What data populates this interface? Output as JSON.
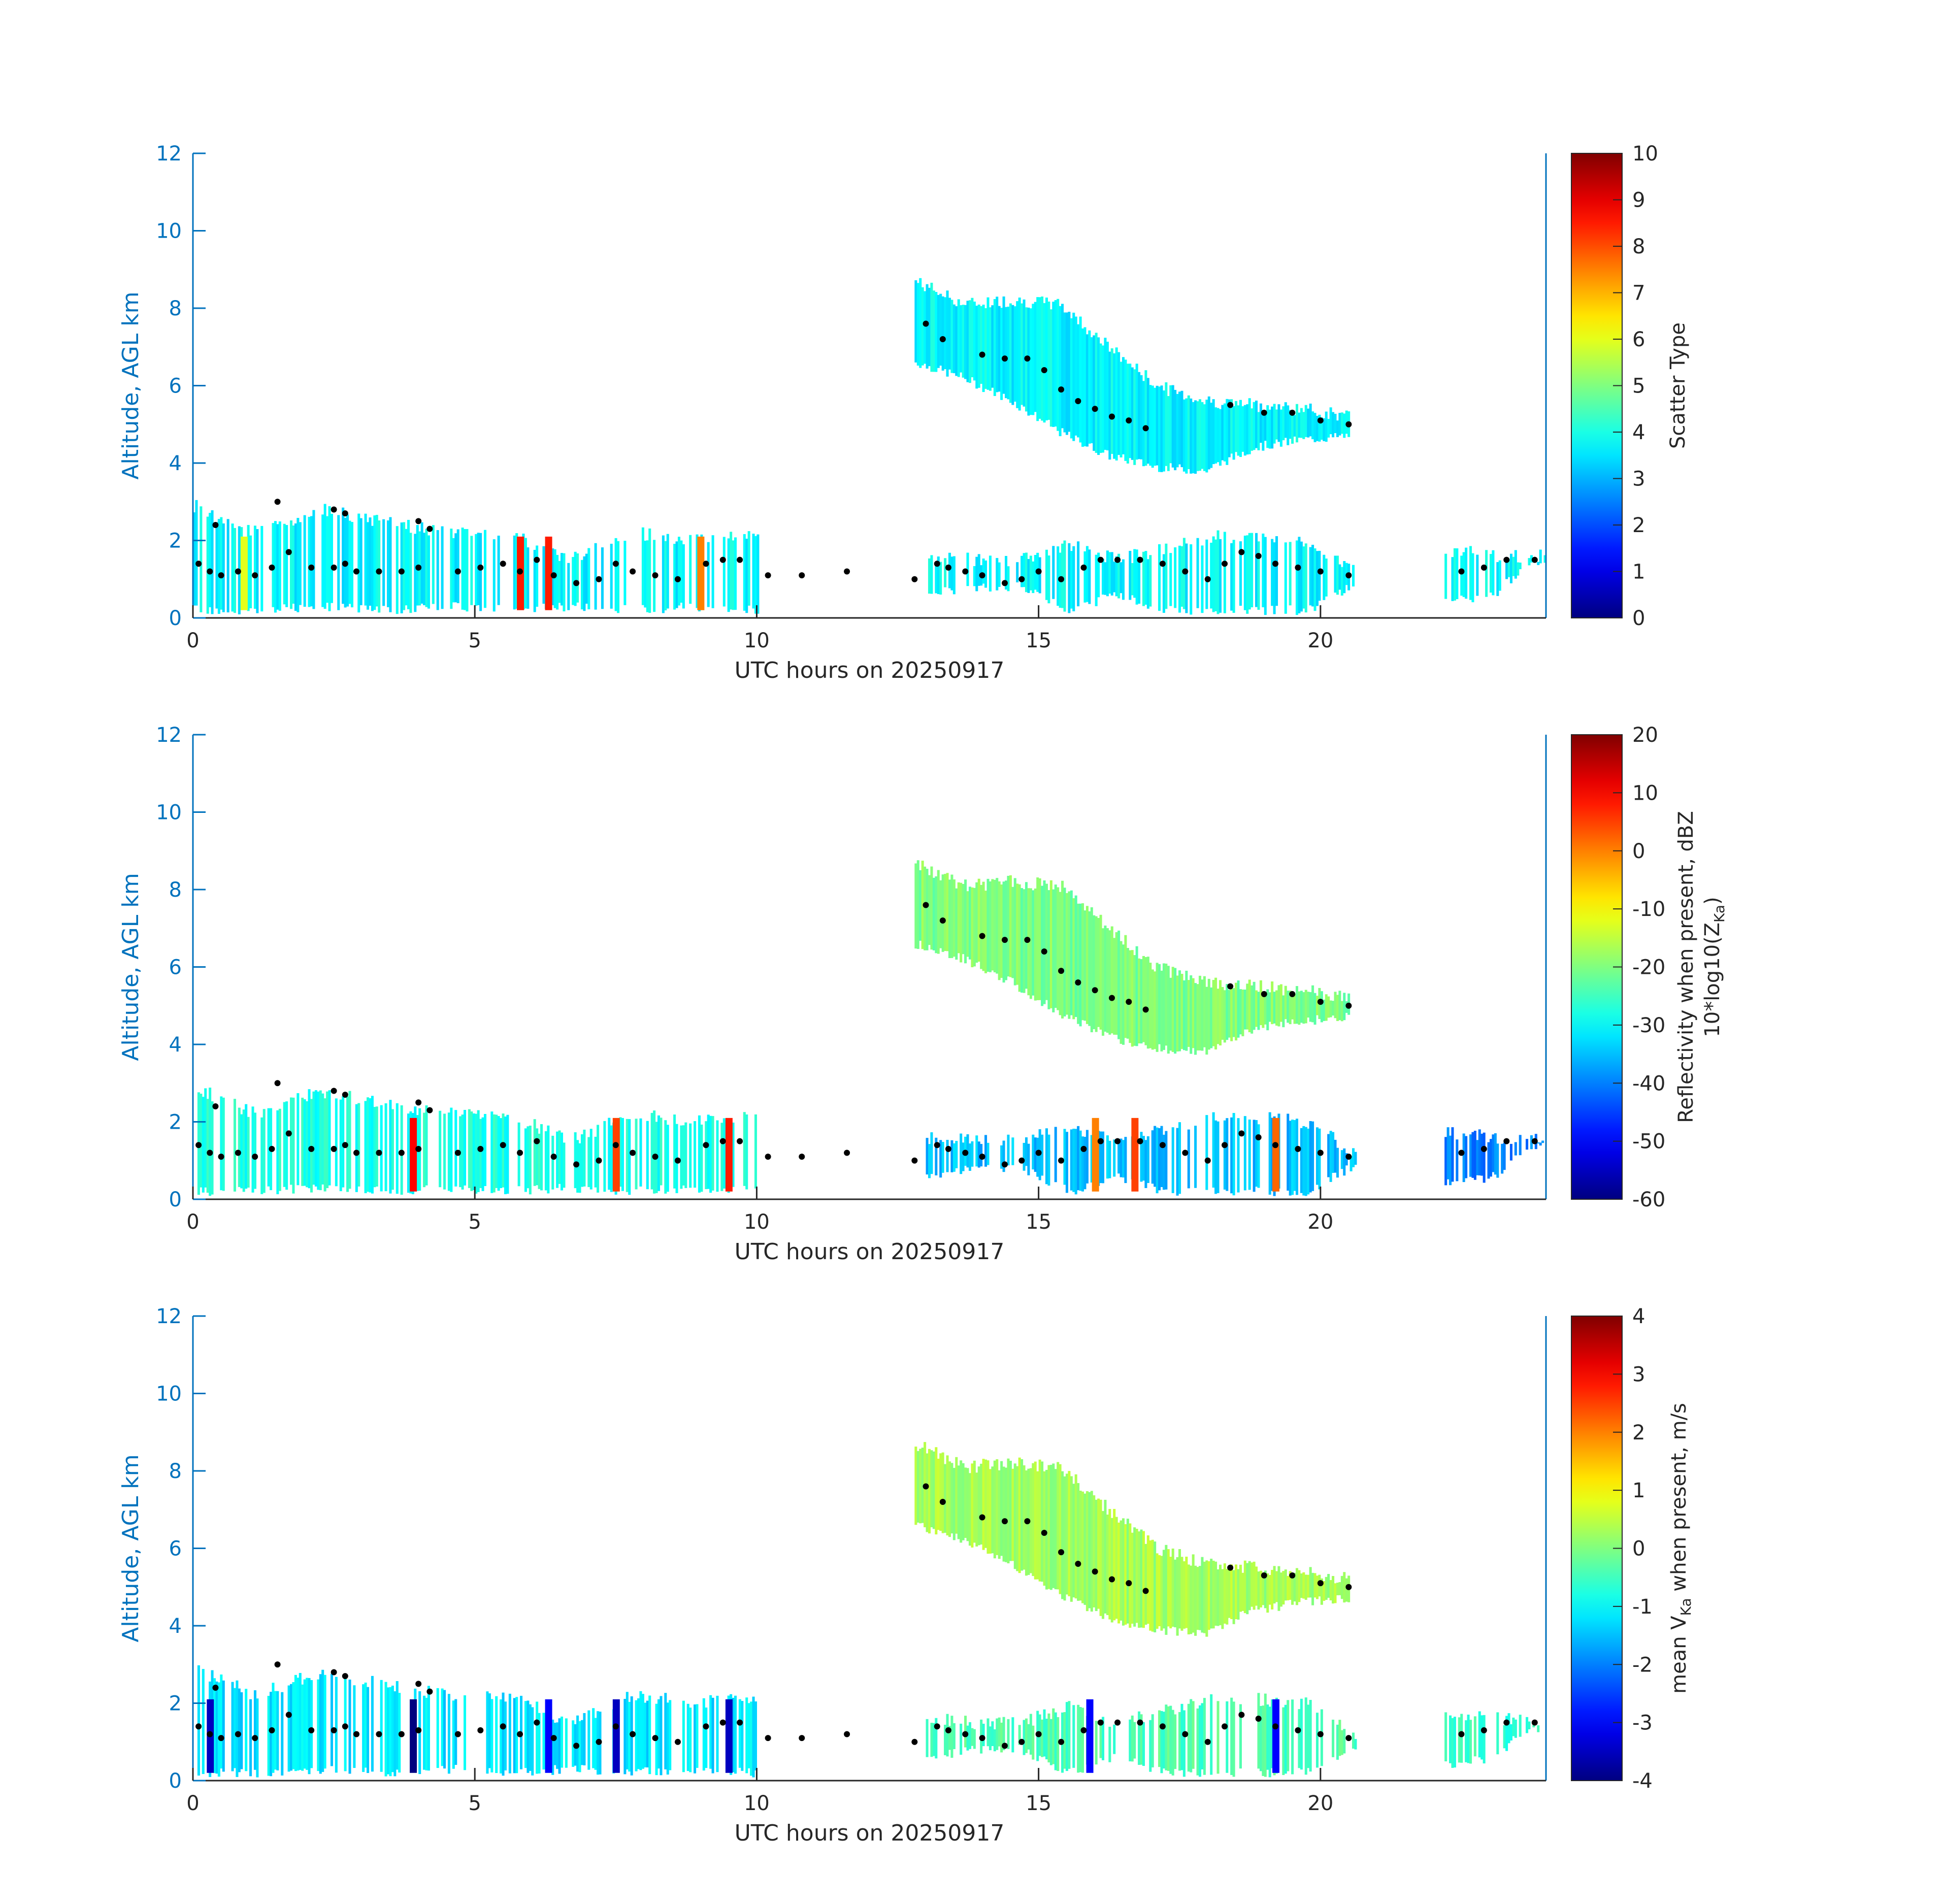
{
  "figure": {
    "background": "#ffffff"
  },
  "colors": {
    "left_axis": "#0072BD",
    "right_axis": "#0072BD",
    "x_axis": "#262626",
    "cloud_base_dots": "#000000"
  },
  "chart_data": [
    {
      "type": "heatmap",
      "colormap": "jet",
      "xlabel": "UTC hours on 20250917",
      "ylabel": "Altitude, AGL km",
      "xlim": [
        0,
        24
      ],
      "ylim": [
        0,
        12
      ],
      "x_ticks": [
        0,
        5,
        10,
        15,
        20
      ],
      "y_ticks": [
        0,
        2,
        4,
        6,
        8,
        10,
        12
      ],
      "grid": false,
      "colorbar": {
        "position": "right",
        "label": "Scatter Type",
        "label_line2": "",
        "range": [
          0,
          10
        ],
        "ticks": [
          "0",
          "1",
          "2",
          "3",
          "4",
          "5",
          "6",
          "7",
          "8",
          "9",
          "10"
        ]
      },
      "field_description": "dominant value 3.7 (cyan) for cloud regions; low-level red streaks ~8.5",
      "layers": [
        {
          "x_start": 12.8,
          "x_end": 20.5,
          "base": [
            6.6,
            6.2,
            5.6,
            4.8,
            4.2,
            3.9,
            3.8,
            4.4,
            4.6,
            4.7
          ],
          "top": [
            8.7,
            8.1,
            8.2,
            8.1,
            7.0,
            6.0,
            5.6,
            5.5,
            5.4,
            5.2
          ],
          "value": 3.7
        },
        {
          "x_start": 0.0,
          "x_end": 10.0,
          "base": [
            0.2,
            0.2,
            0.3,
            0.2,
            0.3,
            0.2,
            0.3,
            0.2,
            0.3,
            0.2
          ],
          "top": [
            2.9,
            2.2,
            2.8,
            2.5,
            2.2,
            2.2,
            1.5,
            2.2,
            2.0,
            2.2
          ],
          "value": 3.7
        },
        {
          "x_start": 13.0,
          "x_end": 20.6,
          "base": [
            0.6,
            0.8,
            0.8,
            0.2,
            0.6,
            0.2,
            0.2,
            0.2,
            0.2,
            0.9
          ],
          "top": [
            1.6,
            1.5,
            1.5,
            1.9,
            1.5,
            1.8,
            2.1,
            2.1,
            2.0,
            1.2
          ],
          "value": 3.7
        },
        {
          "x_start": 22.2,
          "x_end": 24.0,
          "base": [
            0.4,
            0.5,
            0.6,
            1.3,
            1.4
          ],
          "top": [
            1.7,
            1.7,
            1.6,
            1.6,
            1.6
          ],
          "value": 3.7
        }
      ],
      "streaks": [
        {
          "x": 5.8,
          "value": 8.5
        },
        {
          "x": 6.3,
          "value": 8.5
        },
        {
          "x": 9.0,
          "value": 7.5
        },
        {
          "x": 0.9,
          "value": 6.0
        }
      ],
      "cloud_base_points": {
        "x": [
          0.1,
          0.3,
          0.5,
          0.8,
          1.1,
          1.4,
          1.7,
          2.1,
          2.5,
          2.7,
          2.9,
          3.3,
          3.7,
          4.0,
          4.2,
          4.7,
          5.1,
          5.5,
          5.8,
          6.1,
          6.4,
          6.8,
          7.2,
          7.5,
          7.8,
          8.2,
          8.6,
          9.1,
          9.4,
          9.7,
          10.2,
          10.8,
          11.6,
          12.8,
          13.2,
          13.4,
          13.7,
          14.0,
          14.4,
          14.7,
          15.0,
          15.4,
          15.8,
          16.1,
          16.4,
          16.8,
          17.2,
          17.6,
          18.0,
          18.3,
          18.6,
          18.9,
          19.2,
          19.6,
          20.0,
          20.5,
          22.5,
          22.9,
          23.3,
          23.8
        ],
        "y": [
          1.4,
          1.2,
          1.1,
          1.2,
          1.1,
          1.3,
          1.7,
          1.3,
          1.3,
          1.4,
          1.2,
          1.2,
          1.2,
          1.3,
          2.3,
          1.2,
          1.3,
          1.4,
          1.2,
          1.5,
          1.1,
          0.9,
          1.0,
          1.4,
          1.2,
          1.1,
          1.0,
          1.4,
          1.5,
          1.5,
          1.1,
          1.1,
          1.2,
          1.0,
          1.4,
          1.3,
          1.2,
          1.1,
          0.9,
          1.0,
          1.2,
          1.0,
          1.3,
          1.5,
          1.5,
          1.5,
          1.4,
          1.2,
          1.0,
          1.4,
          1.7,
          1.6,
          1.4,
          1.3,
          1.2,
          1.1,
          1.2,
          1.3,
          1.5,
          1.5
        ]
      },
      "cloud_top_points": {
        "x": [
          13.0,
          13.3,
          14.0,
          14.4,
          14.8,
          15.1,
          15.4,
          15.7,
          16.0,
          16.3,
          16.6,
          16.9,
          18.4,
          19.0,
          19.5,
          20.0,
          20.5,
          2.5,
          2.7,
          4.0,
          0.4,
          1.5
        ],
        "y": [
          7.6,
          7.2,
          6.8,
          6.7,
          6.7,
          6.4,
          5.9,
          5.6,
          5.4,
          5.2,
          5.1,
          4.9,
          5.5,
          5.3,
          5.3,
          5.1,
          5.0,
          2.8,
          2.7,
          2.5,
          2.4,
          3.0
        ]
      }
    },
    {
      "type": "heatmap",
      "colormap": "jet",
      "xlabel": "UTC hours on 20250917",
      "ylabel": "Altitude, AGL km",
      "xlim": [
        0,
        24
      ],
      "ylim": [
        0,
        12
      ],
      "x_ticks": [
        0,
        5,
        10,
        15,
        20
      ],
      "y_ticks": [
        0,
        2,
        4,
        6,
        8,
        10,
        12
      ],
      "grid": false,
      "colorbar": {
        "position": "right",
        "label": "Reflectivity when present, dBZ",
        "label_line2": "10*log10(Z",
        "label_line2_sub": "Ka",
        "label_line2_end": ")",
        "range": [
          -60,
          20
        ],
        "ticks": [
          "-60",
          "-50",
          "-40",
          "-30",
          "-20",
          "-10",
          "0",
          "10",
          "20"
        ]
      },
      "field_description": "upper layer -25 to -5 dBZ with yellow/orange core ~15.5-17 UTC; low clouds -35 to 10 dBZ",
      "layers": [
        {
          "x_start": 12.8,
          "x_end": 20.5,
          "base": [
            6.6,
            6.2,
            5.6,
            4.8,
            4.2,
            3.9,
            3.8,
            4.4,
            4.6,
            4.7
          ],
          "top": [
            8.7,
            8.1,
            8.2,
            8.1,
            7.0,
            6.0,
            5.6,
            5.5,
            5.4,
            5.2
          ],
          "value": -20
        },
        {
          "x_start": 0.0,
          "x_end": 10.0,
          "base": [
            0.2,
            0.2,
            0.3,
            0.2,
            0.3,
            0.2,
            0.3,
            0.2,
            0.3,
            0.2
          ],
          "top": [
            2.9,
            2.2,
            2.8,
            2.5,
            2.2,
            2.2,
            1.5,
            2.2,
            2.0,
            2.2
          ],
          "value": -28
        },
        {
          "x_start": 13.0,
          "x_end": 20.6,
          "base": [
            0.6,
            0.8,
            0.8,
            0.2,
            0.6,
            0.2,
            0.2,
            0.2,
            0.2,
            0.9
          ],
          "top": [
            1.6,
            1.5,
            1.5,
            1.9,
            1.5,
            1.8,
            2.1,
            2.1,
            2.0,
            1.2
          ],
          "value": -35
        },
        {
          "x_start": 22.2,
          "x_end": 24.0,
          "base": [
            0.4,
            0.5,
            0.6,
            1.3,
            1.4
          ],
          "top": [
            1.7,
            1.7,
            1.6,
            1.6,
            1.6
          ],
          "value": -40
        }
      ],
      "streaks": [
        {
          "x": 3.9,
          "value": 10
        },
        {
          "x": 7.5,
          "value": 5
        },
        {
          "x": 9.5,
          "value": 8
        },
        {
          "x": 16.0,
          "value": 0
        },
        {
          "x": 16.7,
          "value": 5
        },
        {
          "x": 19.2,
          "value": 2
        }
      ],
      "cloud_base_points": {
        "x": [
          0.1,
          0.3,
          0.5,
          0.8,
          1.1,
          1.4,
          1.7,
          2.1,
          2.5,
          2.7,
          2.9,
          3.3,
          3.7,
          4.0,
          4.2,
          4.7,
          5.1,
          5.5,
          5.8,
          6.1,
          6.4,
          6.8,
          7.2,
          7.5,
          7.8,
          8.2,
          8.6,
          9.1,
          9.4,
          9.7,
          10.2,
          10.8,
          11.6,
          12.8,
          13.2,
          13.4,
          13.7,
          14.0,
          14.4,
          14.7,
          15.0,
          15.4,
          15.8,
          16.1,
          16.4,
          16.8,
          17.2,
          17.6,
          18.0,
          18.3,
          18.6,
          18.9,
          19.2,
          19.6,
          20.0,
          20.5,
          22.5,
          22.9,
          23.3,
          23.8
        ],
        "y": [
          1.4,
          1.2,
          1.1,
          1.2,
          1.1,
          1.3,
          1.7,
          1.3,
          1.3,
          1.4,
          1.2,
          1.2,
          1.2,
          1.3,
          2.3,
          1.2,
          1.3,
          1.4,
          1.2,
          1.5,
          1.1,
          0.9,
          1.0,
          1.4,
          1.2,
          1.1,
          1.0,
          1.4,
          1.5,
          1.5,
          1.1,
          1.1,
          1.2,
          1.0,
          1.4,
          1.3,
          1.2,
          1.1,
          0.9,
          1.0,
          1.2,
          1.0,
          1.3,
          1.5,
          1.5,
          1.5,
          1.4,
          1.2,
          1.0,
          1.4,
          1.7,
          1.6,
          1.4,
          1.3,
          1.2,
          1.1,
          1.2,
          1.3,
          1.5,
          1.5
        ]
      },
      "cloud_top_points": {
        "x": [
          13.0,
          13.3,
          14.0,
          14.4,
          14.8,
          15.1,
          15.4,
          15.7,
          16.0,
          16.3,
          16.6,
          16.9,
          18.4,
          19.0,
          19.5,
          20.0,
          20.5,
          2.5,
          2.7,
          4.0,
          0.4,
          1.5
        ],
        "y": [
          7.6,
          7.2,
          6.8,
          6.7,
          6.7,
          6.4,
          5.9,
          5.6,
          5.4,
          5.2,
          5.1,
          4.9,
          5.5,
          5.3,
          5.3,
          5.1,
          5.0,
          2.8,
          2.7,
          2.5,
          2.4,
          3.0
        ]
      }
    },
    {
      "type": "heatmap",
      "colormap": "jet",
      "xlabel": "UTC hours on 20250917",
      "ylabel": "Altitude, AGL km",
      "xlim": [
        0,
        24
      ],
      "ylim": [
        0,
        12
      ],
      "x_ticks": [
        0,
        5,
        10,
        15,
        20
      ],
      "y_ticks": [
        0,
        2,
        4,
        6,
        8,
        10,
        12
      ],
      "grid": false,
      "colorbar": {
        "position": "right",
        "label": "mean V",
        "label_sub": "Ka",
        "label_end": " when present, m/s",
        "range": [
          -4,
          4
        ],
        "ticks": [
          "-4",
          "-3",
          "-2",
          "-1",
          "0",
          "1",
          "2",
          "3",
          "4"
        ]
      },
      "field_description": "upper layer ~0 to +0.5 m/s (green-yellow); low clouds -3 to 0 m/s with blue precipitation shafts",
      "layers": [
        {
          "x_start": 12.8,
          "x_end": 20.5,
          "base": [
            6.6,
            6.2,
            5.6,
            4.8,
            4.2,
            3.9,
            3.8,
            4.4,
            4.6,
            4.7
          ],
          "top": [
            8.7,
            8.1,
            8.2,
            8.1,
            7.0,
            6.0,
            5.6,
            5.5,
            5.4,
            5.2
          ],
          "value": 0.3
        },
        {
          "x_start": 0.0,
          "x_end": 10.0,
          "base": [
            0.2,
            0.2,
            0.3,
            0.2,
            0.3,
            0.2,
            0.3,
            0.2,
            0.3,
            0.2
          ],
          "top": [
            2.9,
            2.2,
            2.8,
            2.5,
            2.2,
            2.2,
            1.5,
            2.2,
            2.0,
            2.2
          ],
          "value": -1.2
        },
        {
          "x_start": 13.0,
          "x_end": 20.6,
          "base": [
            0.6,
            0.8,
            0.8,
            0.2,
            0.6,
            0.2,
            0.2,
            0.2,
            0.2,
            0.9
          ],
          "top": [
            1.6,
            1.5,
            1.5,
            1.9,
            1.5,
            1.8,
            2.1,
            2.1,
            2.0,
            1.2
          ],
          "value": -0.4
        },
        {
          "x_start": 22.2,
          "x_end": 24.0,
          "base": [
            0.4,
            0.5,
            0.6,
            1.3,
            1.4
          ],
          "top": [
            1.7,
            1.7,
            1.6,
            1.6,
            1.6
          ],
          "value": -0.6
        }
      ],
      "streaks": [
        {
          "x": 0.3,
          "value": -3.5
        },
        {
          "x": 3.9,
          "value": -4
        },
        {
          "x": 6.3,
          "value": -3
        },
        {
          "x": 7.5,
          "value": -3.5
        },
        {
          "x": 9.5,
          "value": -3.5
        },
        {
          "x": 15.9,
          "value": -3
        },
        {
          "x": 19.2,
          "value": -3
        }
      ],
      "cloud_base_points": {
        "x": [
          0.1,
          0.3,
          0.5,
          0.8,
          1.1,
          1.4,
          1.7,
          2.1,
          2.5,
          2.7,
          2.9,
          3.3,
          3.7,
          4.0,
          4.2,
          4.7,
          5.1,
          5.5,
          5.8,
          6.1,
          6.4,
          6.8,
          7.2,
          7.5,
          7.8,
          8.2,
          8.6,
          9.1,
          9.4,
          9.7,
          10.2,
          10.8,
          11.6,
          12.8,
          13.2,
          13.4,
          13.7,
          14.0,
          14.4,
          14.7,
          15.0,
          15.4,
          15.8,
          16.1,
          16.4,
          16.8,
          17.2,
          17.6,
          18.0,
          18.3,
          18.6,
          18.9,
          19.2,
          19.6,
          20.0,
          20.5,
          22.5,
          22.9,
          23.3,
          23.8
        ],
        "y": [
          1.4,
          1.2,
          1.1,
          1.2,
          1.1,
          1.3,
          1.7,
          1.3,
          1.3,
          1.4,
          1.2,
          1.2,
          1.2,
          1.3,
          2.3,
          1.2,
          1.3,
          1.4,
          1.2,
          1.5,
          1.1,
          0.9,
          1.0,
          1.4,
          1.2,
          1.1,
          1.0,
          1.4,
          1.5,
          1.5,
          1.1,
          1.1,
          1.2,
          1.0,
          1.4,
          1.3,
          1.2,
          1.1,
          0.9,
          1.0,
          1.2,
          1.0,
          1.3,
          1.5,
          1.5,
          1.5,
          1.4,
          1.2,
          1.0,
          1.4,
          1.7,
          1.6,
          1.4,
          1.3,
          1.2,
          1.1,
          1.2,
          1.3,
          1.5,
          1.5
        ]
      },
      "cloud_top_points": {
        "x": [
          13.0,
          13.3,
          14.0,
          14.4,
          14.8,
          15.1,
          15.4,
          15.7,
          16.0,
          16.3,
          16.6,
          16.9,
          18.4,
          19.0,
          19.5,
          20.0,
          20.5,
          2.5,
          2.7,
          4.0,
          0.4,
          1.5
        ],
        "y": [
          7.6,
          7.2,
          6.8,
          6.7,
          6.7,
          6.4,
          5.9,
          5.6,
          5.4,
          5.2,
          5.1,
          4.9,
          5.5,
          5.3,
          5.3,
          5.1,
          5.0,
          2.8,
          2.7,
          2.5,
          2.4,
          3.0
        ]
      }
    }
  ]
}
